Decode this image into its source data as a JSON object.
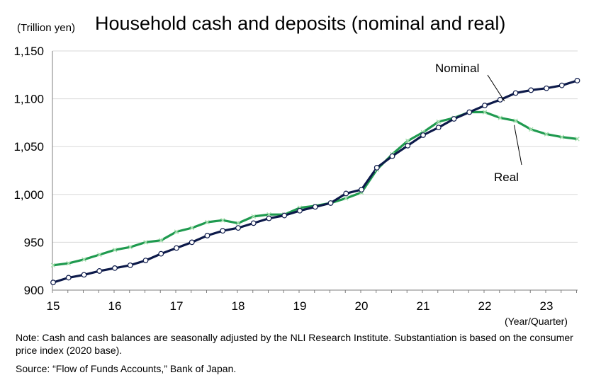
{
  "header": {
    "unit_label": "(Trillion yen)",
    "title": "Household cash and deposits (nominal and real)"
  },
  "footer": {
    "x_unit": "(Year/Quarter)",
    "note": "Note: Cash and cash balances are seasonally adjusted by the NLI Research Institute. Substantiation is based on the consumer price index (2020 base).",
    "source": "Source: “Flow of Funds Accounts,” Bank of Japan."
  },
  "chart_data": {
    "type": "line",
    "title": "Household cash and deposits (nominal and real)",
    "ylabel": "(Trillion yen)",
    "xlabel": "(Year/Quarter)",
    "ylim": [
      900,
      1150
    ],
    "yticks": [
      900,
      950,
      1000,
      1050,
      1100,
      1150
    ],
    "ytick_labels": [
      "900",
      "950",
      "1,000",
      "1,050",
      "1,100",
      "1,150"
    ],
    "year_labels": [
      "15",
      "16",
      "17",
      "18",
      "19",
      "20",
      "21",
      "22",
      "23"
    ],
    "x": [
      "15Q1",
      "15Q2",
      "15Q3",
      "15Q4",
      "16Q1",
      "16Q2",
      "16Q3",
      "16Q4",
      "17Q1",
      "17Q2",
      "17Q3",
      "17Q4",
      "18Q1",
      "18Q2",
      "18Q3",
      "18Q4",
      "19Q1",
      "19Q2",
      "19Q3",
      "19Q4",
      "20Q1",
      "20Q2",
      "20Q3",
      "20Q4",
      "21Q1",
      "21Q2",
      "21Q3",
      "21Q4",
      "22Q1",
      "22Q2",
      "22Q3",
      "22Q4",
      "23Q1",
      "23Q2",
      "23Q3"
    ],
    "grid": true,
    "series": [
      {
        "name": "Nominal",
        "color": "#0d1a4a",
        "marker": "circle",
        "values": [
          908,
          913,
          916,
          920,
          923,
          926,
          931,
          938,
          944,
          950,
          957,
          962,
          965,
          970,
          975,
          978,
          983,
          987,
          991,
          1001,
          1005,
          1028,
          1040,
          1051,
          1062,
          1070,
          1079,
          1086,
          1093,
          1099,
          1106,
          1109,
          1111,
          1114,
          1119
        ]
      },
      {
        "name": "Real",
        "color": "#1f9a4f",
        "marker": "x",
        "values": [
          926,
          928,
          932,
          937,
          942,
          945,
          950,
          952,
          961,
          965,
          971,
          973,
          970,
          977,
          979,
          979,
          986,
          988,
          991,
          996,
          1002,
          1026,
          1042,
          1056,
          1065,
          1076,
          1080,
          1086,
          1086,
          1080,
          1077,
          1068,
          1063,
          1060,
          1058
        ]
      }
    ],
    "annotations": [
      {
        "text": "Nominal",
        "series": "Nominal"
      },
      {
        "text": "Real",
        "series": "Real"
      }
    ]
  }
}
